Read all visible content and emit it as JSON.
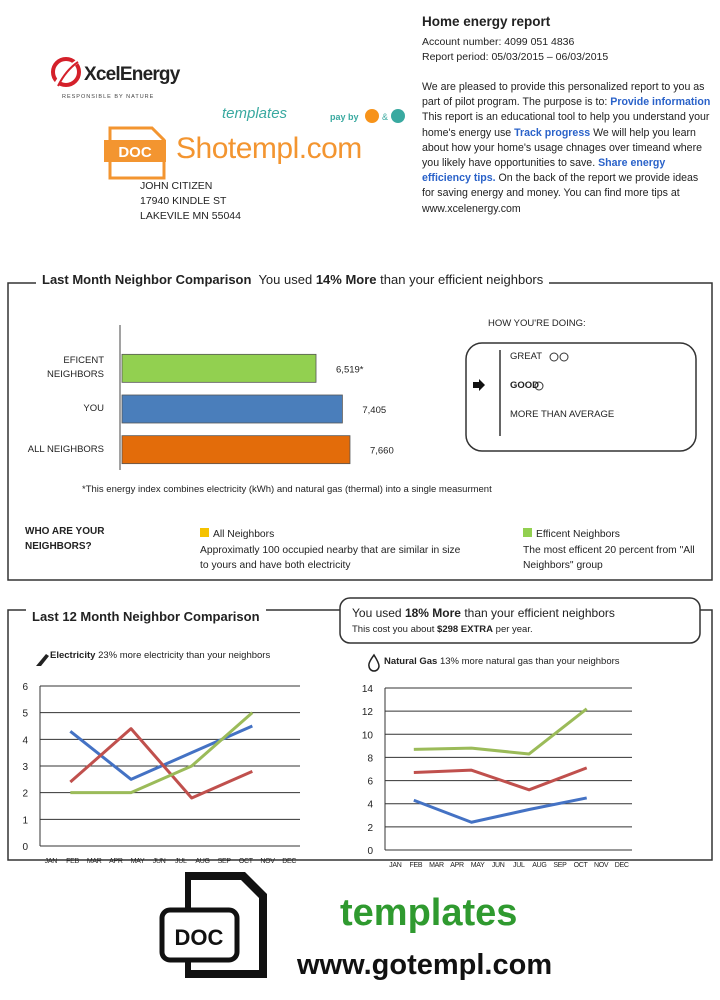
{
  "header": {
    "logo": "XcelEnergy",
    "tagline": "RESPONSIBLE BY NATURE"
  },
  "watermark": {
    "script": "templates",
    "pay": "pay by",
    "and": "&",
    "icon": "DOC",
    "site": "Shotempl.com",
    "footer_title": "templates",
    "footer_url": "www.gotempl.com",
    "footer_icon": "DOC"
  },
  "address": [
    "JOHN CITIZEN",
    "17940 KINDLE ST",
    "LAKEVILE MN 55044"
  ],
  "report": {
    "title": "Home energy report",
    "account": "Account number: 4099  051  4836",
    "period": "Report period: 05/03/2015 – 06/03/2015",
    "intro": "We are pleased to provide this personalized report to you as part of pilot program. The purpose is to:",
    "items": [
      {
        "label": "Provide information",
        "text": "This report is an educational tool to help you understand your home's energy use"
      },
      {
        "label": "Track progress",
        "text": "We will help you learn about how your home's usage chnages over timeand where you likely have opportunities to save."
      },
      {
        "label": "Share energy efficiency tips.",
        "text": "On the back of the report we provide ideas for saving energy and money. You can find more tips  at www.xcelenergy.com"
      }
    ]
  },
  "last_month": {
    "title": "Last Month Neighbor Comparison",
    "summary_pre": "You used",
    "summary_bold": "14% More",
    "summary_post": "than your efficient neighbors",
    "status_title": "HOW YOU'RE DOING:",
    "status": [
      "GREAT",
      "GOOD",
      "MORE THAN AVERAGE"
    ],
    "neighbors_title": "WHO ARE YOUR NEIGHBORS?",
    "legend": [
      {
        "name": "All Neighbors",
        "color": "#f5c200",
        "text": "Approximatly 100 occupied nearby that are similar in size to yours and have both electricity"
      },
      {
        "name": "Efficent Neighbors",
        "color": "#92d050",
        "text": "The most efficent 20 percent from \"All Neighbors\" group"
      }
    ]
  },
  "last_12": {
    "title": "Last 12 Month Neighbor Comparison",
    "summary_pre": "You used",
    "summary_bold": "18% More",
    "summary_post": "than your efficient neighbors",
    "cost_pre": "This cost you about",
    "cost_bold": "$298 EXTRA",
    "cost_post": "per year."
  },
  "chart_data": [
    {
      "type": "bar",
      "horizontal": true,
      "categories": [
        "EFICENT NEIGHBORS",
        "YOU",
        "ALL NEIGHBORS"
      ],
      "values": [
        6519,
        7405,
        7660
      ],
      "value_labels": [
        "6,519*",
        "7,405",
        "7,660"
      ],
      "colors": [
        "#92d050",
        "#4a7ebb",
        "#e36c0a"
      ],
      "xlim": [
        0,
        8400
      ],
      "note": "*This energy index combines electricity (kWh) and natural gas (thermal) into a single measurment"
    },
    {
      "type": "line",
      "label": "Electricity",
      "subtitle": "23% more electricity than your neighbors",
      "x": [
        0.9,
        3.7,
        6.5,
        9.3
      ],
      "xlim": [
        -0.5,
        11.5
      ],
      "xticks": [
        {
          "value": 0,
          "label": "JAN"
        },
        {
          "value": 1,
          "label": "FEB"
        },
        {
          "value": 2,
          "label": "MAR"
        },
        {
          "value": 3,
          "label": "APR"
        },
        {
          "value": 4,
          "label": "MAY"
        },
        {
          "value": 5,
          "label": "JUN"
        },
        {
          "value": 6,
          "label": "JUL"
        },
        {
          "value": 7,
          "label": "AUG"
        },
        {
          "value": 8,
          "label": "SEP"
        },
        {
          "value": 9,
          "label": "OCT"
        },
        {
          "value": 10,
          "label": "NOV"
        },
        {
          "value": 11,
          "label": "DEC"
        }
      ],
      "ylim": [
        0,
        6
      ],
      "yticks": [
        0,
        1,
        2,
        3,
        4,
        5,
        6
      ],
      "grid": true,
      "series": [
        {
          "color": "#4472c4",
          "values": [
            4.3,
            2.5,
            3.5,
            4.5
          ]
        },
        {
          "color": "#c0504d",
          "values": [
            2.4,
            4.4,
            1.8,
            2.8
          ]
        },
        {
          "color": "#9bbb59",
          "values": [
            2.0,
            2.0,
            3.0,
            5.0
          ]
        }
      ]
    },
    {
      "type": "line",
      "label": "Natural Gas",
      "subtitle": "13% more natural gas than your neighbors",
      "x": [
        0.9,
        3.7,
        6.5,
        9.3
      ],
      "xlim": [
        -0.5,
        11.5
      ],
      "xticks": [
        {
          "value": 0,
          "label": "JAN"
        },
        {
          "value": 1,
          "label": "FEB"
        },
        {
          "value": 2,
          "label": "MAR"
        },
        {
          "value": 3,
          "label": "APR"
        },
        {
          "value": 4,
          "label": "MAY"
        },
        {
          "value": 5,
          "label": "JUN"
        },
        {
          "value": 6,
          "label": "JUL"
        },
        {
          "value": 7,
          "label": "AUG"
        },
        {
          "value": 8,
          "label": "SEP"
        },
        {
          "value": 9,
          "label": "OCT"
        },
        {
          "value": 10,
          "label": "NOV"
        },
        {
          "value": 11,
          "label": "DEC"
        }
      ],
      "ylim": [
        0,
        14
      ],
      "yticks": [
        0,
        2,
        4,
        6,
        8,
        10,
        12,
        14
      ],
      "grid": true,
      "series": [
        {
          "color": "#4472c4",
          "values": [
            4.3,
            2.4,
            3.5,
            4.5
          ]
        },
        {
          "color": "#c0504d",
          "values": [
            6.7,
            6.9,
            5.2,
            7.1
          ]
        },
        {
          "color": "#9bbb59",
          "values": [
            8.7,
            8.8,
            8.3,
            12.2
          ]
        }
      ]
    }
  ]
}
